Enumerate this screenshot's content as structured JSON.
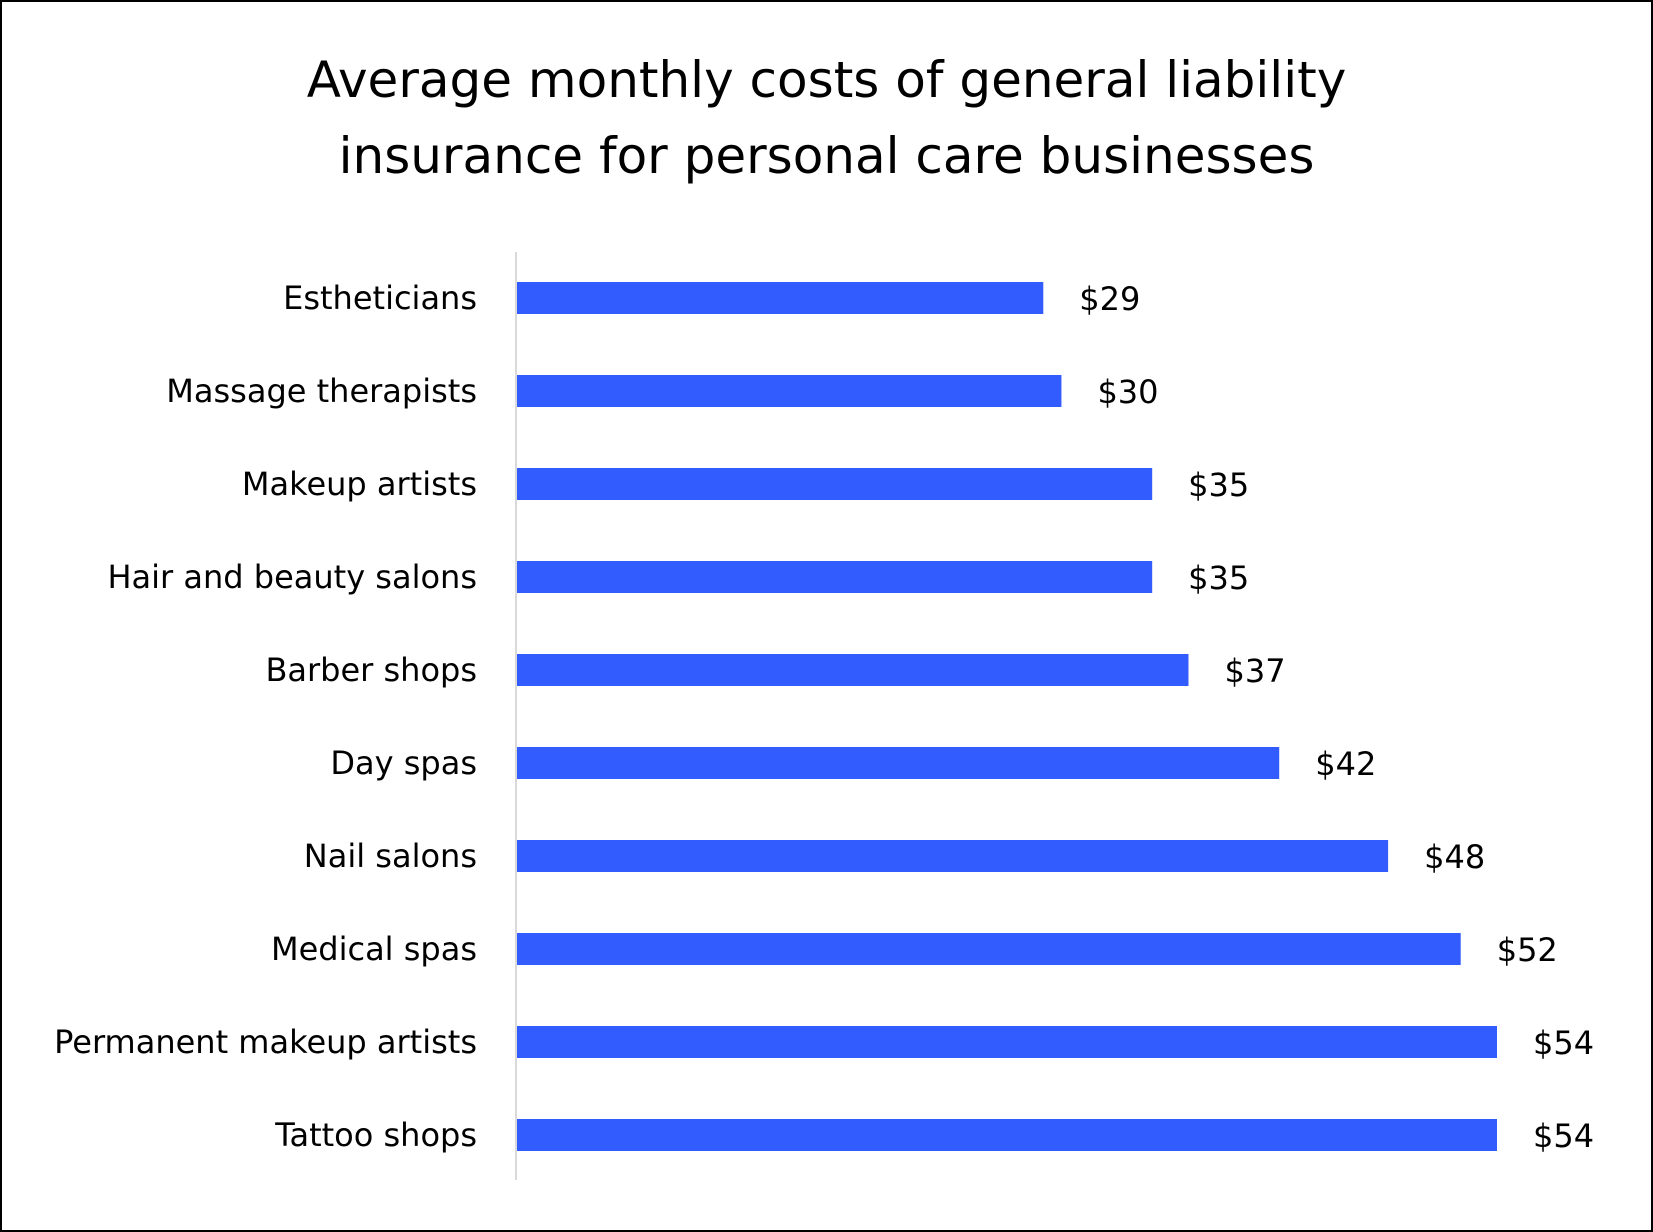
{
  "chart_data": {
    "type": "bar",
    "orientation": "horizontal",
    "title": "Average monthly costs of general liability insurance for personal care businesses",
    "title_lines": [
      "Average monthly costs of general liability",
      "insurance for personal care businesses"
    ],
    "categories": [
      "Estheticians",
      "Massage therapists",
      "Makeup artists",
      "Hair and beauty salons",
      "Barber shops",
      "Day spas",
      "Nail salons",
      "Medical spas",
      "Permanent makeup artists",
      "Tattoo shops"
    ],
    "values": [
      29,
      30,
      35,
      35,
      37,
      42,
      48,
      52,
      54,
      54
    ],
    "data_labels": [
      "$29",
      "$30",
      "$35",
      "$35",
      "$37",
      "$42",
      "$48",
      "$52",
      "$54",
      "$54"
    ],
    "xlabel": "",
    "ylabel": "",
    "xlim": [
      0,
      54
    ],
    "grid": false,
    "legend": "none",
    "bar_color": "#335CFF",
    "axis_color": "#D9D9D9"
  }
}
